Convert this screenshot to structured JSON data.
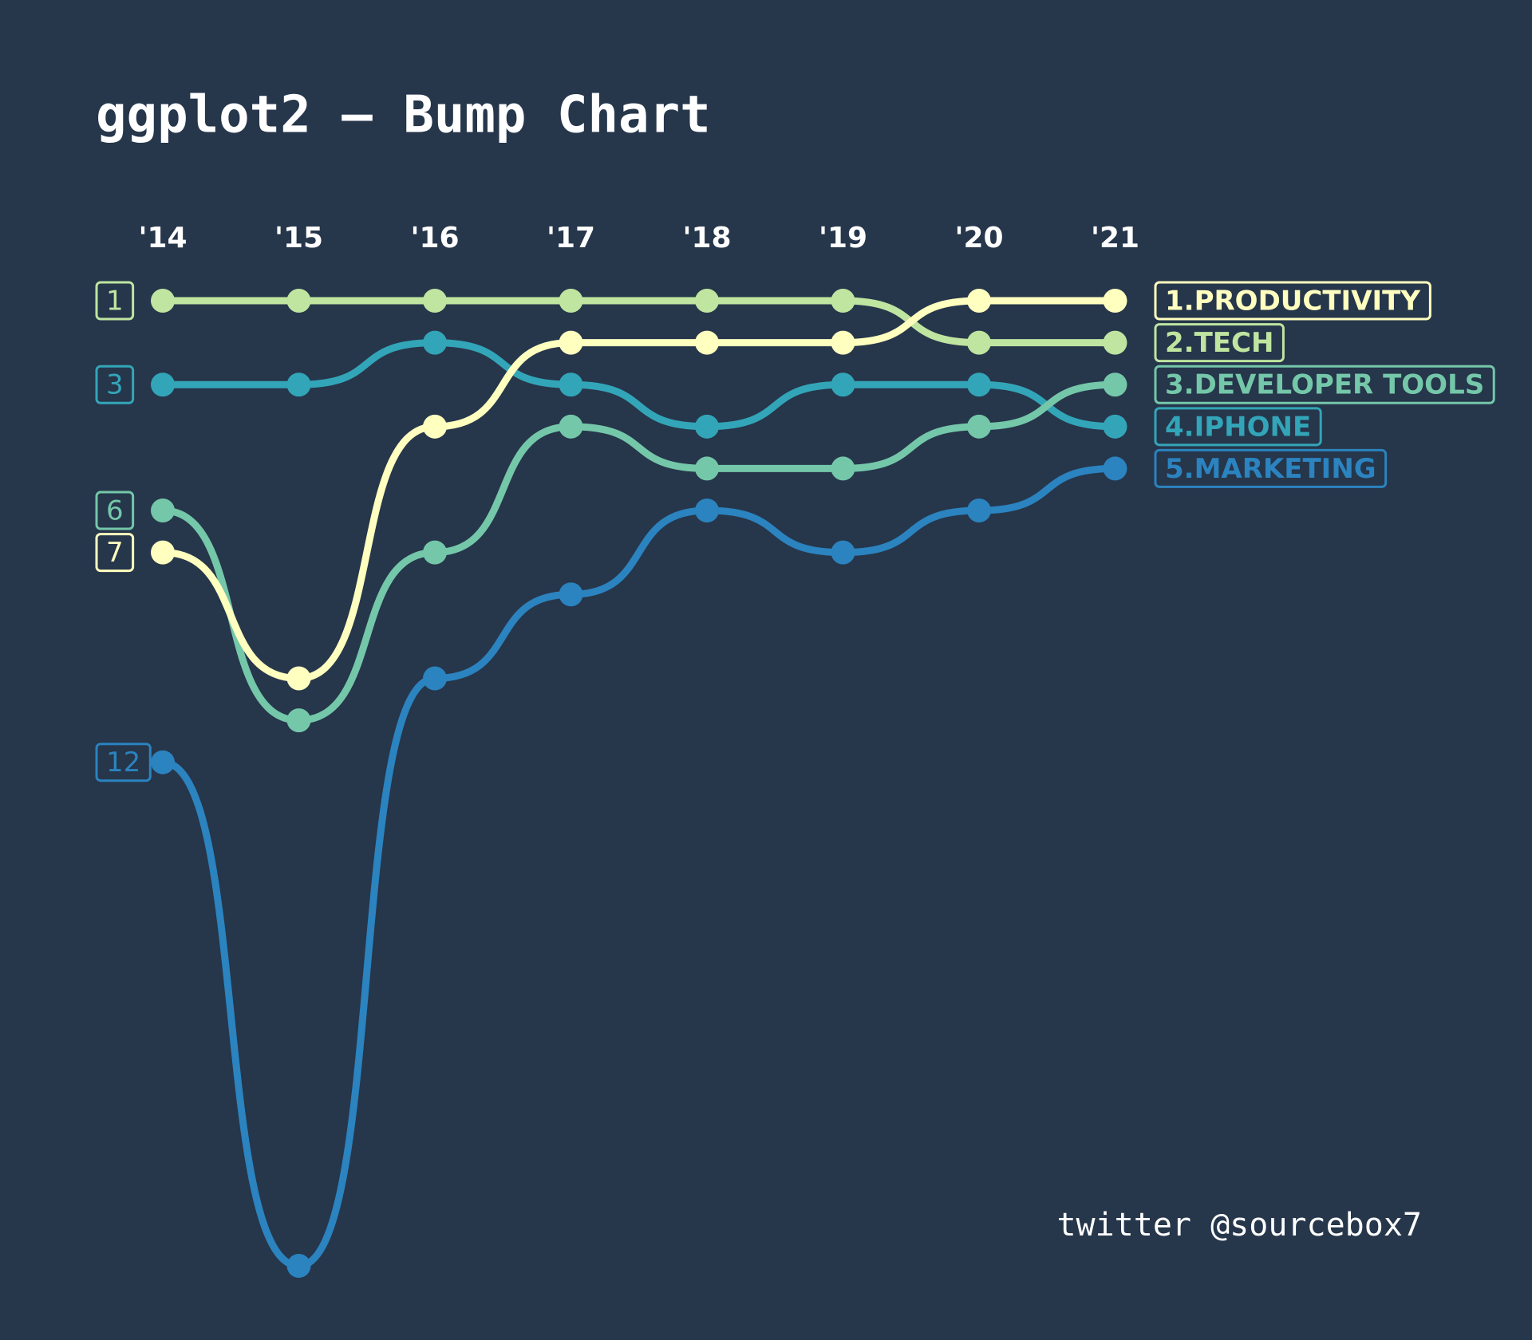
{
  "chart_data": {
    "type": "bump",
    "title": "ggplot2 — Bump Chart",
    "caption": "twitter @sourcebox7",
    "categories": [
      "'14",
      "'15",
      "'16",
      "'17",
      "'18",
      "'19",
      "'20",
      "'21"
    ],
    "ylim": [
      24,
      1
    ],
    "series": [
      {
        "name": "5.MARKETING",
        "color": "#2b83bf",
        "values": [
          12,
          24,
          10,
          8,
          6,
          7,
          6,
          5
        ]
      },
      {
        "name": "4.IPHONE",
        "color": "#33a5b8",
        "values": [
          3,
          3,
          2,
          3,
          4,
          3,
          3,
          4
        ]
      },
      {
        "name": "3.DEVELOPER TOOLS",
        "color": "#74c7a9",
        "values": [
          6,
          11,
          7,
          4,
          5,
          5,
          4,
          3
        ]
      },
      {
        "name": "2.TECH",
        "color": "#bfe5a0",
        "values": [
          1,
          1,
          1,
          1,
          1,
          1,
          2,
          2
        ]
      },
      {
        "name": "1.PRODUCTIVITY",
        "color": "#ffffbf",
        "values": [
          7,
          10,
          4,
          2,
          2,
          2,
          1,
          1
        ]
      }
    ]
  }
}
